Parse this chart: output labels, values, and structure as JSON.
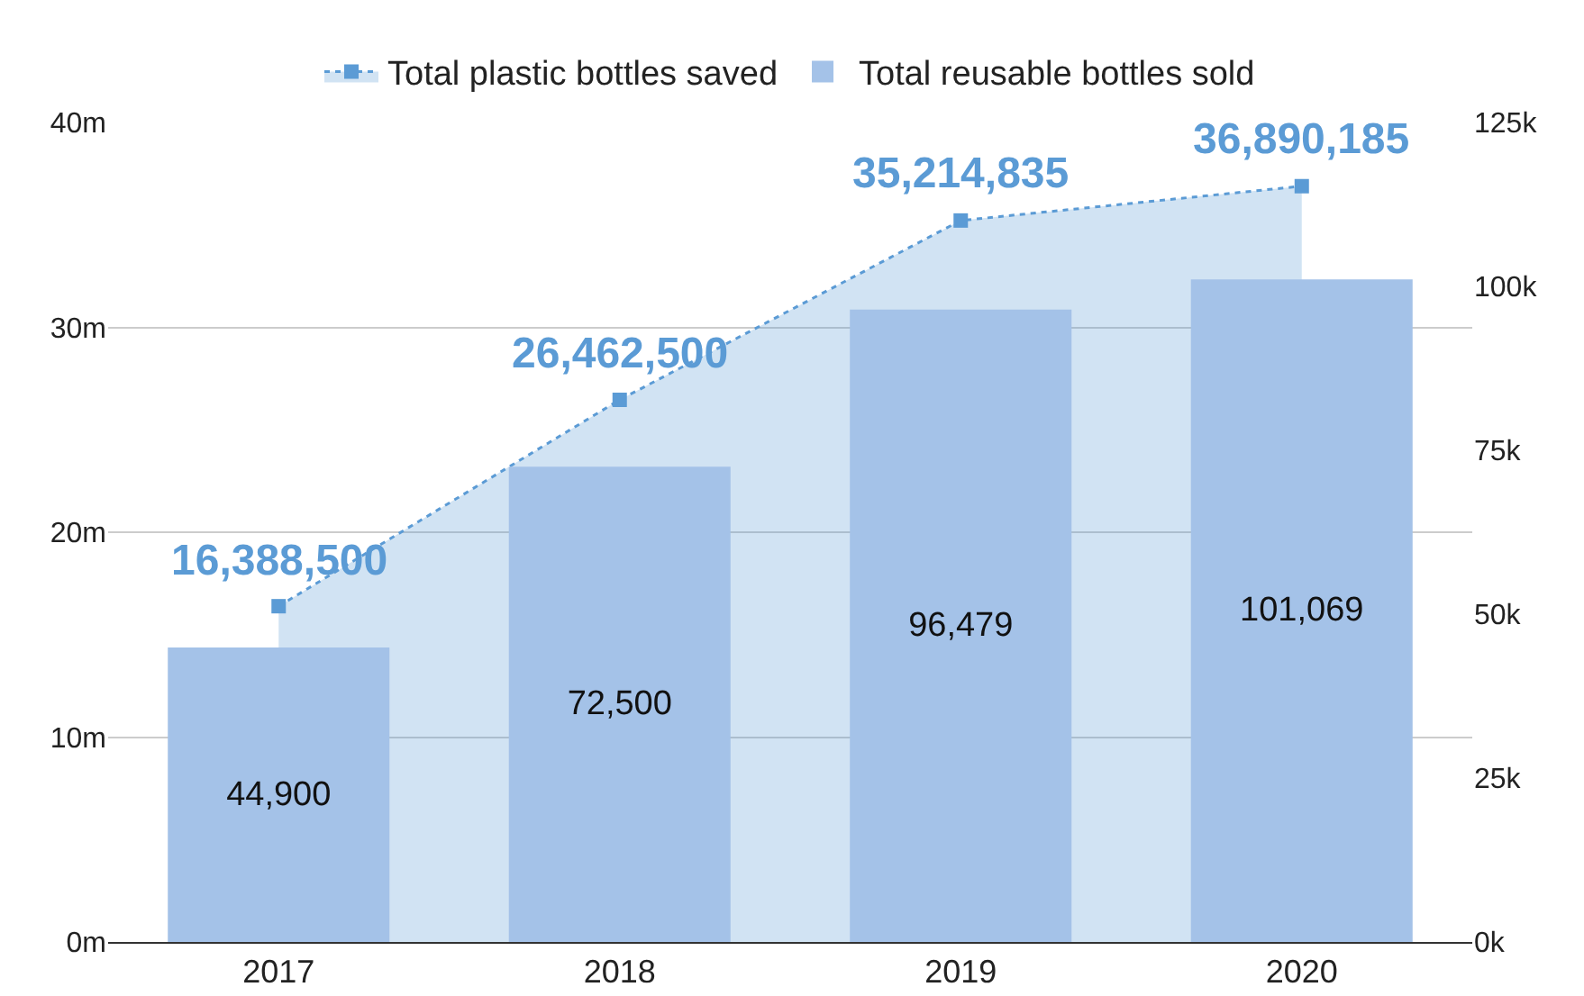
{
  "chart_data": {
    "type": "bar",
    "categories": [
      "2017",
      "2018",
      "2019",
      "2020"
    ],
    "series": [
      {
        "name": "Total plastic bottles saved",
        "type": "area",
        "color": "#5b9bd5",
        "values": [
          16388500,
          26462500,
          35214835,
          36890185
        ],
        "value_labels": [
          "16,388,500",
          "26,462,500",
          "35,214,835",
          "36,890,185"
        ]
      },
      {
        "name": "Total reusable bottles sold",
        "axis": "y2",
        "color": "#a4c2e8",
        "values": [
          44900,
          72500,
          96479,
          101069
        ],
        "value_labels": [
          "44,900",
          "72,500",
          "96,479",
          "101,069"
        ]
      }
    ],
    "ylim": [
      0,
      40000000
    ],
    "yticks": [
      {
        "value": 0,
        "label": "0m"
      },
      {
        "value": 10000000,
        "label": "10m"
      },
      {
        "value": 20000000,
        "label": "20m"
      },
      {
        "value": 30000000,
        "label": "30m"
      },
      {
        "value": 40000000,
        "label": "40m"
      }
    ],
    "y2lim": [
      0,
      125000
    ],
    "y2ticks": [
      {
        "value": 0,
        "label": "0k"
      },
      {
        "value": 25000,
        "label": "25k"
      },
      {
        "value": 50000,
        "label": "50k"
      },
      {
        "value": 75000,
        "label": "75k"
      },
      {
        "value": 100000,
        "label": "100k"
      },
      {
        "value": 125000,
        "label": "125k"
      }
    ],
    "grid": "y",
    "legend": "top",
    "marker": "square",
    "line_style": "dotted"
  }
}
